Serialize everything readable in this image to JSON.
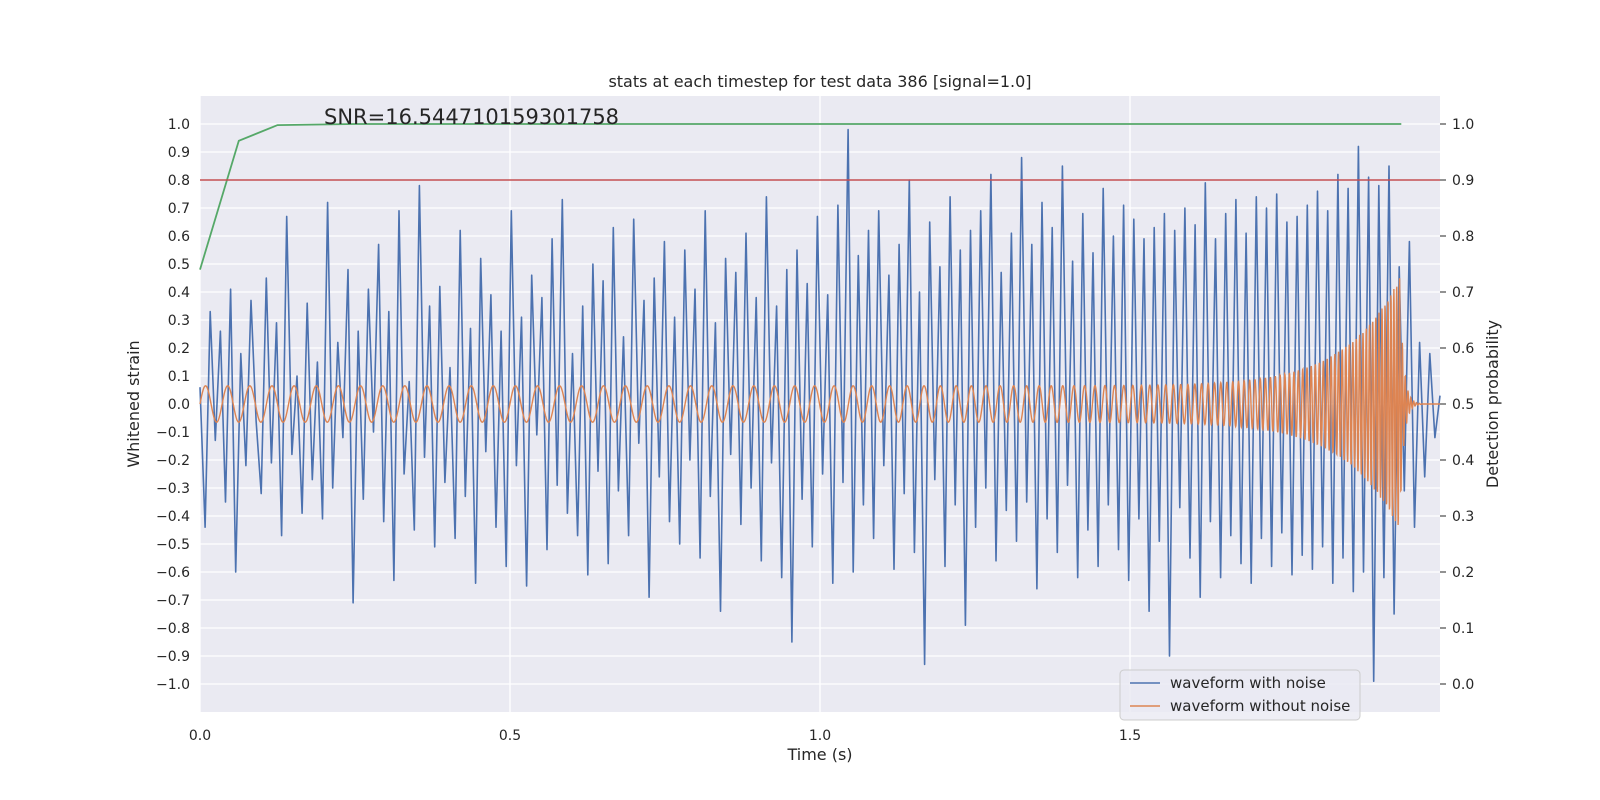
{
  "chart_data": {
    "type": "line",
    "title": "stats at each timestep for test data 386 [signal=1.0]",
    "xlabel": "Time (s)",
    "ylabel_left": "Whitened strain",
    "ylabel_right": "Detection probability",
    "annotation": "SNR=16.544710159301758",
    "xlim": [
      0.0,
      2.0
    ],
    "ylim_left": [
      -1.1,
      1.1
    ],
    "ylim_right": [
      -0.05,
      1.05
    ],
    "xticks": [
      0.0,
      0.5,
      1.0,
      1.5
    ],
    "xtick_labels": [
      "0.0",
      "0.5",
      "1.0",
      "1.5"
    ],
    "yticks_left": [
      -1.0,
      -0.9,
      -0.8,
      -0.7,
      -0.6,
      -0.5,
      -0.4,
      -0.3,
      -0.2,
      -0.1,
      0.0,
      0.1,
      0.2,
      0.3,
      0.4,
      0.5,
      0.6,
      0.7,
      0.8,
      0.9,
      1.0
    ],
    "ytick_labels_left": [
      "−1.0",
      "−0.9",
      "−0.8",
      "−0.7",
      "−0.6",
      "−0.5",
      "−0.4",
      "−0.3",
      "−0.2",
      "−0.1",
      "0.0",
      "0.1",
      "0.2",
      "0.3",
      "0.4",
      "0.5",
      "0.6",
      "0.7",
      "0.8",
      "0.9",
      "1.0"
    ],
    "yticks_right": [
      0.0,
      0.1,
      0.2,
      0.3,
      0.4,
      0.5,
      0.6,
      0.7,
      0.8,
      0.9,
      1.0
    ],
    "ytick_labels_right": [
      "0.0",
      "0.1",
      "0.2",
      "0.3",
      "0.4",
      "0.5",
      "0.6",
      "0.7",
      "0.8",
      "0.9",
      "1.0"
    ],
    "grid": true,
    "legend_position": "bottom-right",
    "series": [
      {
        "name": "waveform with noise",
        "color": "#4c72b0",
        "axis": "left",
        "values": [
          0.06,
          -0.44,
          0.33,
          -0.13,
          0.26,
          -0.35,
          0.41,
          -0.6,
          0.18,
          -0.22,
          0.37,
          -0.06,
          -0.32,
          0.45,
          -0.21,
          0.29,
          -0.47,
          0.67,
          -0.18,
          0.1,
          -0.39,
          0.36,
          -0.27,
          0.15,
          -0.41,
          0.72,
          -0.3,
          0.22,
          -0.12,
          0.48,
          -0.71,
          0.26,
          -0.34,
          0.41,
          -0.1,
          0.57,
          -0.42,
          0.33,
          -0.63,
          0.69,
          -0.25,
          0.08,
          -0.45,
          0.78,
          -0.19,
          0.35,
          -0.51,
          0.42,
          -0.28,
          0.13,
          -0.48,
          0.62,
          -0.33,
          0.27,
          -0.64,
          0.52,
          -0.17,
          0.39,
          -0.44,
          0.26,
          -0.58,
          0.69,
          -0.22,
          0.31,
          -0.65,
          0.46,
          -0.11,
          0.38,
          -0.52,
          0.59,
          -0.29,
          0.73,
          -0.39,
          0.18,
          -0.47,
          0.35,
          -0.61,
          0.5,
          -0.24,
          0.44,
          -0.57,
          0.63,
          -0.31,
          0.24,
          -0.47,
          0.66,
          -0.14,
          0.37,
          -0.69,
          0.45,
          -0.26,
          0.58,
          -0.42,
          0.31,
          -0.5,
          0.55,
          -0.2,
          0.41,
          -0.55,
          0.69,
          -0.33,
          0.29,
          -0.74,
          0.52,
          -0.18,
          0.47,
          -0.43,
          0.61,
          -0.3,
          0.38,
          -0.56,
          0.74,
          -0.21,
          0.35,
          -0.62,
          0.48,
          -0.85,
          0.55,
          -0.34,
          0.43,
          -0.51,
          0.67,
          -0.25,
          0.39,
          -0.64,
          0.71,
          -0.28,
          0.98,
          -0.6,
          0.53,
          -0.36,
          0.62,
          -0.48,
          0.69,
          -0.22,
          0.46,
          -0.59,
          0.57,
          -0.32,
          0.8,
          -0.53,
          0.4,
          -0.93,
          0.65,
          -0.27,
          0.49,
          -0.58,
          0.74,
          -0.36,
          0.55,
          -0.79,
          0.62,
          -0.44,
          0.69,
          -0.3,
          0.82,
          -0.56,
          0.47,
          -0.38,
          0.61,
          -0.49,
          0.88,
          -0.35,
          0.57,
          -0.66,
          0.72,
          -0.41,
          0.63,
          -0.53,
          0.85,
          -0.29,
          0.51,
          -0.62,
          0.68,
          -0.45,
          0.54,
          -0.58,
          0.77,
          -0.36,
          0.6,
          -0.52,
          0.71,
          -0.63,
          0.66,
          -0.41,
          0.59,
          -0.74,
          0.63,
          -0.49,
          0.68,
          -0.9,
          0.62,
          -0.37,
          0.7,
          -0.55,
          0.64,
          -0.69,
          0.79,
          -0.42,
          0.59,
          -0.62,
          0.68,
          -0.47,
          0.73,
          -0.57,
          0.61,
          -0.64,
          0.74,
          -0.48,
          0.7,
          -0.58,
          0.75,
          -0.46,
          0.65,
          -0.61,
          0.67,
          -0.54,
          0.71,
          -0.59,
          0.76,
          -0.51,
          0.69,
          -0.64,
          0.82,
          -0.55,
          0.77,
          -0.67,
          0.92,
          -0.6,
          0.81,
          -0.99,
          0.78,
          -0.62,
          0.85,
          -0.75,
          0.49,
          -0.31,
          0.58,
          -0.44,
          0.22,
          -0.26,
          0.18,
          -0.12,
          0.03
        ]
      },
      {
        "name": "waveform without noise",
        "color": "#dd8452",
        "axis": "left",
        "description_of_shape": "chirp",
        "amplitude_start": 0.065,
        "amplitude_end": 0.45,
        "frequency_start_hz": 28,
        "frequency_end_hz": 220,
        "merger_time": 1.935,
        "ringdown_end": 1.97
      },
      {
        "name": "",
        "color": "#55a868",
        "axis": "right",
        "x": [
          0.0,
          0.0625,
          0.125,
          0.25,
          0.5,
          0.75,
          1.0,
          1.25,
          1.5,
          1.75,
          1.9375
        ],
        "values": [
          0.74,
          0.97,
          0.998,
          1.0,
          1.0,
          1.0,
          1.0,
          1.0,
          1.0,
          1.0,
          1.0
        ]
      },
      {
        "name": "",
        "color": "#c44e52",
        "axis": "right",
        "x": [
          0.0,
          2.0
        ],
        "values": [
          0.9,
          0.9
        ]
      }
    ]
  }
}
